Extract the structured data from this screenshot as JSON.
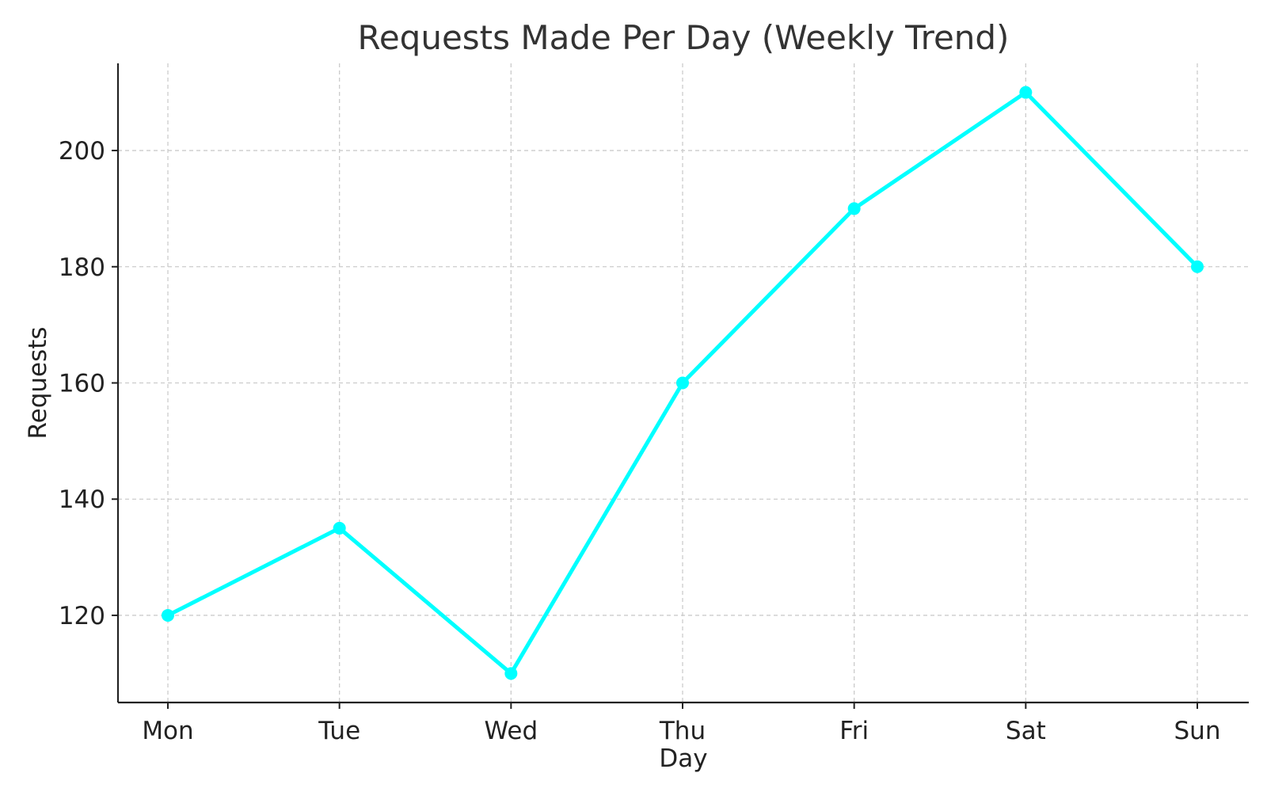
{
  "chart_data": {
    "type": "line",
    "title": "Requests Made Per Day (Weekly Trend)",
    "xlabel": "Day",
    "ylabel": "Requests",
    "categories": [
      "Mon",
      "Tue",
      "Wed",
      "Thu",
      "Fri",
      "Sat",
      "Sun"
    ],
    "series": [
      {
        "values": [
          120,
          135,
          110,
          160,
          190,
          210,
          180
        ],
        "color": "#00FFFF"
      }
    ],
    "ylim": [
      105,
      215
    ],
    "yticks": [
      120,
      140,
      160,
      180,
      200
    ],
    "grid": true,
    "legend": "none"
  }
}
